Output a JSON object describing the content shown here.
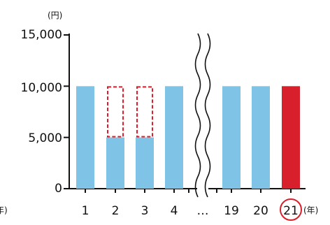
{
  "chart_data": {
    "type": "bar",
    "y_unit_label": "(円)",
    "x_unit_label": "(年)",
    "x_unit_label_left": "年)",
    "ylim": [
      0,
      15000
    ],
    "y_ticks": [
      "0",
      "5,000",
      "10,000",
      "15,000"
    ],
    "y_tick_values": [
      0,
      5000,
      10000,
      15000
    ],
    "break_symbol": "…",
    "highlighted_category": "21",
    "categories": [
      "1",
      "2",
      "3",
      "4",
      "19",
      "20",
      "21"
    ],
    "series": [
      {
        "values": [
          10000,
          5000,
          5000,
          10000,
          10000,
          10000,
          10000
        ]
      }
    ],
    "dashed_outline": [
      null,
      10000,
      10000,
      null,
      null,
      null,
      null
    ],
    "colors": {
      "bar": "#7fc3e6",
      "highlight_bar": "#d7202b",
      "dashed_outline": "#d7202b",
      "axis": "#111111"
    }
  }
}
